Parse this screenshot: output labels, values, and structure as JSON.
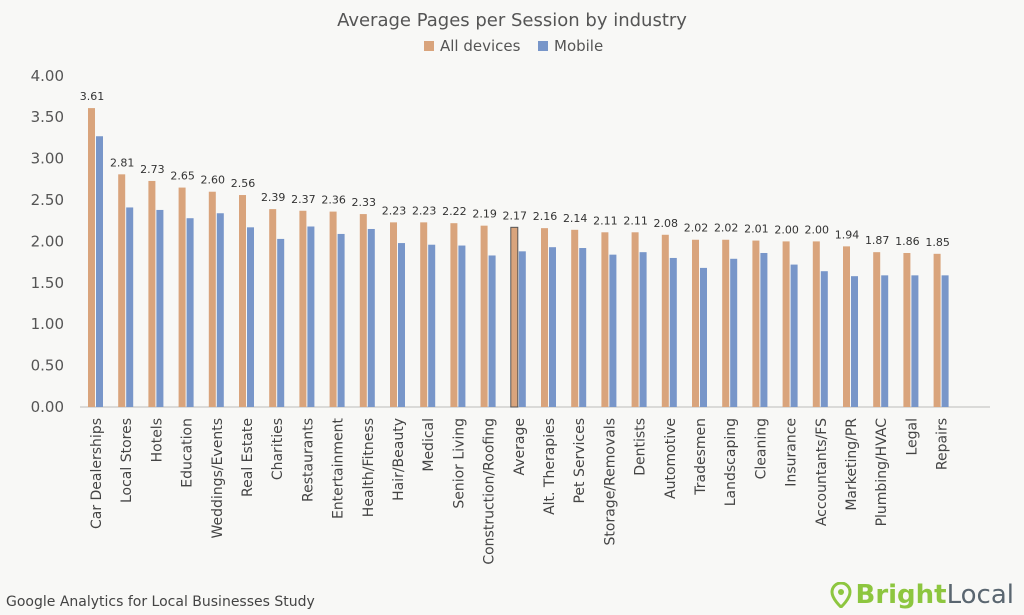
{
  "chart_data": {
    "type": "bar",
    "title": "Average Pages per Session by industry",
    "xlabel": "",
    "ylabel": "",
    "ylim": [
      0,
      4
    ],
    "yticks": [
      "0.00",
      "0.50",
      "1.00",
      "1.50",
      "2.00",
      "2.50",
      "3.00",
      "3.50",
      "4.00"
    ],
    "grid": false,
    "legend": "top",
    "categories": [
      "Car Dealerships",
      "Local Stores",
      "Hotels",
      "Education",
      "Weddings/Events",
      "Real Estate",
      "Charities",
      "Restaurants",
      "Entertainment",
      "Health/Fitness",
      "Hair/Beauty",
      "Medical",
      "Senior Living",
      "Construction/Roofing",
      "Average",
      "Alt. Therapies",
      "Pet Services",
      "Storage/Removals",
      "Dentists",
      "Automotive",
      "Tradesmen",
      "Landscaping",
      "Cleaning",
      "Insurance",
      "Accountants/FS",
      "Marketing/PR",
      "Plumbing/HVAC",
      "Legal",
      "Repairs"
    ],
    "series": [
      {
        "name": "All devices",
        "color": "#d9a47c",
        "values": [
          3.61,
          2.81,
          2.73,
          2.65,
          2.6,
          2.56,
          2.39,
          2.37,
          2.36,
          2.33,
          2.23,
          2.23,
          2.22,
          2.19,
          2.17,
          2.16,
          2.14,
          2.11,
          2.11,
          2.08,
          2.02,
          2.02,
          2.01,
          2.0,
          2.0,
          1.94,
          1.87,
          1.86,
          1.85
        ],
        "labels": [
          "3.61",
          "2.81",
          "2.73",
          "2.65",
          "2.60",
          "2.56",
          "2.39",
          "2.37",
          "2.36",
          "2.33",
          "2.23",
          "2.23",
          "2.22",
          "2.19",
          "2.17",
          "2.16",
          "2.14",
          "2.11",
          "2.11",
          "2.08",
          "2.02",
          "2.02",
          "2.01",
          "2.00",
          "2.00",
          "1.94",
          "1.87",
          "1.86",
          "1.85"
        ]
      },
      {
        "name": "Mobile",
        "color": "#7896c9",
        "values": [
          3.27,
          2.41,
          2.38,
          2.28,
          2.34,
          2.17,
          2.03,
          2.18,
          2.09,
          2.15,
          1.98,
          1.96,
          1.95,
          1.83,
          1.88,
          1.93,
          1.92,
          1.84,
          1.87,
          1.8,
          1.68,
          1.79,
          1.86,
          1.72,
          1.64,
          1.58,
          1.59,
          1.59,
          1.59
        ]
      }
    ]
  },
  "footer": "Google Analytics for Local Businesses Study",
  "logo": {
    "text_bright": "Bright",
    "text_local": "Local"
  }
}
